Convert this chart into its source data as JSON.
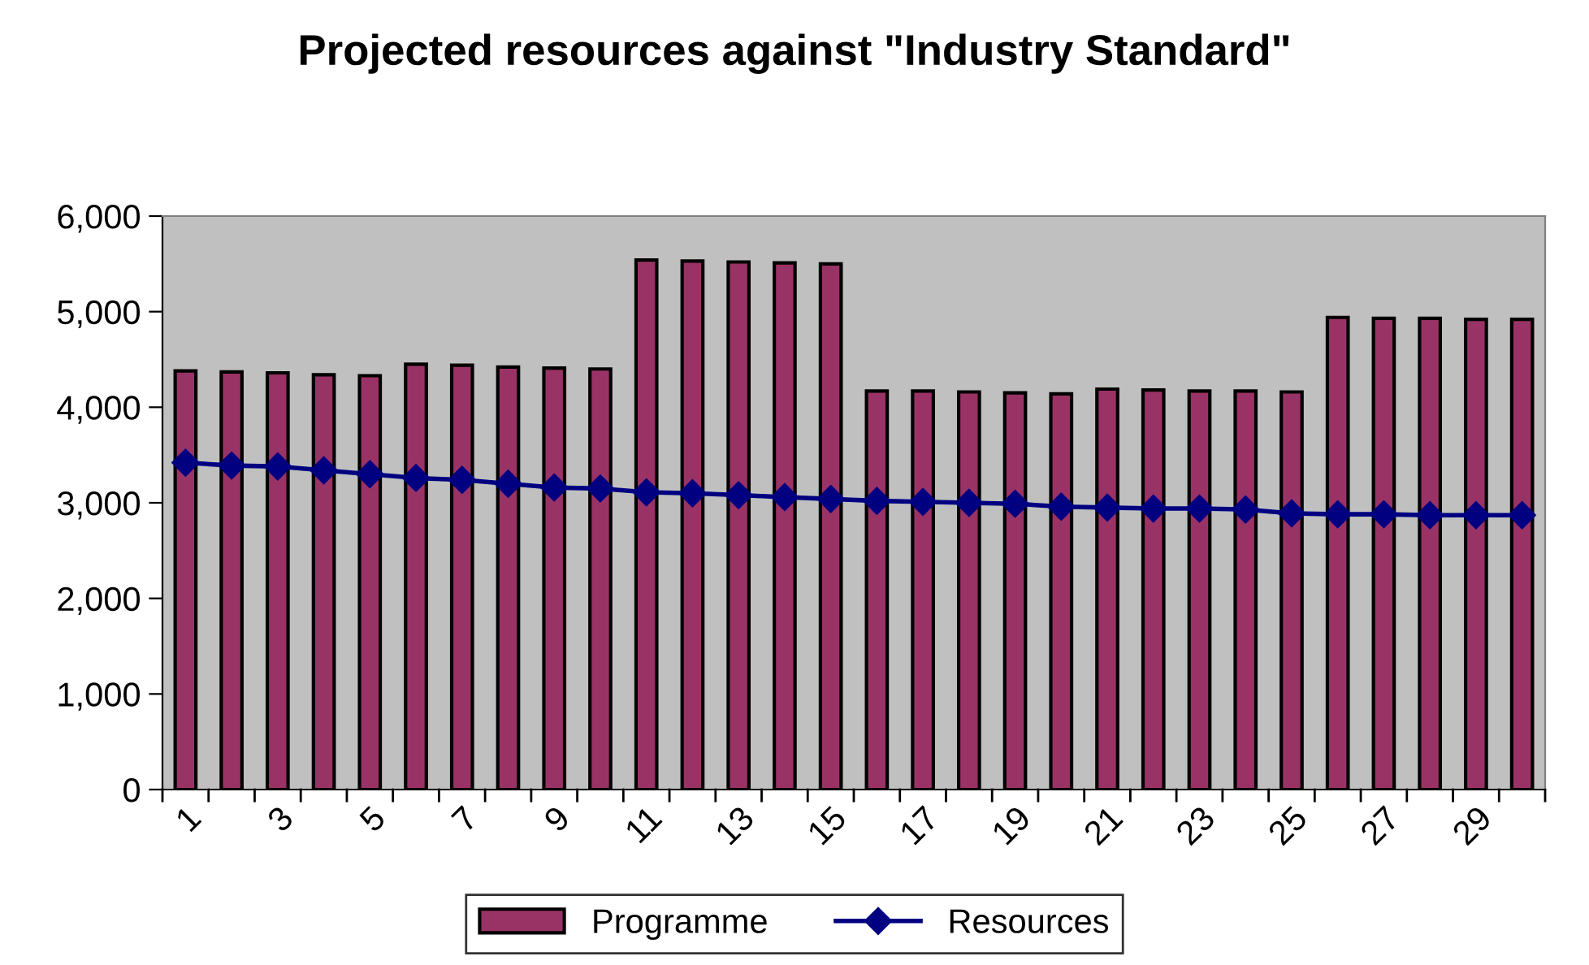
{
  "chart_data": {
    "type": "bar",
    "title": "Projected resources against \"Industry Standard\"",
    "categories": [
      "1",
      null,
      "3",
      null,
      "5",
      null,
      "7",
      null,
      "9",
      null,
      "11",
      null,
      "13",
      null,
      "15",
      null,
      "17",
      null,
      "19",
      null,
      "21",
      null,
      "23",
      null,
      "25",
      null,
      "27",
      null,
      "29",
      null
    ],
    "series": [
      {
        "name": "Programme",
        "color": "#993366",
        "values": [
          4380,
          4370,
          4360,
          4340,
          4330,
          4450,
          4440,
          4420,
          4410,
          4400,
          5540,
          5530,
          5520,
          5510,
          5500,
          4170,
          4170,
          4160,
          4150,
          4140,
          4190,
          4180,
          4170,
          4170,
          4160,
          4940,
          4930,
          4930,
          4920,
          4920
        ]
      },
      {
        "name": "Resources",
        "type": "line",
        "color": "#000080",
        "marker": "diamond",
        "values": [
          3420,
          3390,
          3380,
          3340,
          3300,
          3260,
          3240,
          3200,
          3160,
          3150,
          3110,
          3100,
          3080,
          3060,
          3040,
          3020,
          3010,
          3000,
          2990,
          2960,
          2950,
          2940,
          2940,
          2930,
          2890,
          2880,
          2880,
          2870,
          2870,
          2870
        ]
      }
    ],
    "ylim": [
      0,
      6000
    ],
    "yticks": [
      {
        "value": 0,
        "label": "0"
      },
      {
        "value": 1000,
        "label": "1,000"
      },
      {
        "value": 2000,
        "label": "2,000"
      },
      {
        "value": 3000,
        "label": "3,000"
      },
      {
        "value": 4000,
        "label": "4,000"
      },
      {
        "value": 5000,
        "label": "5,000"
      },
      {
        "value": 6000,
        "label": "6,000"
      }
    ],
    "grid": false,
    "legend": "bottom"
  }
}
